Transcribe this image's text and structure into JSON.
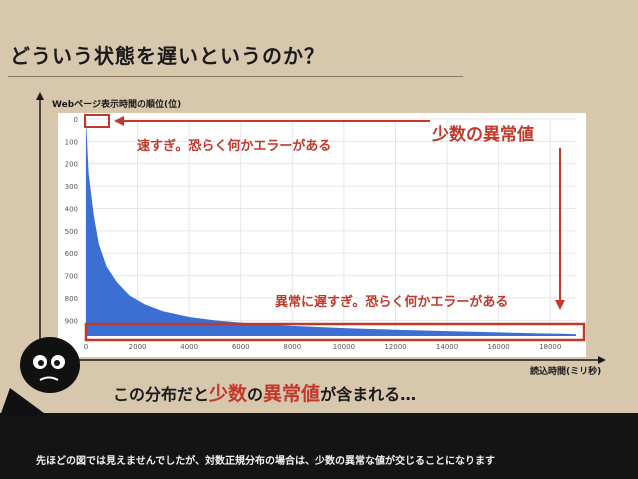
{
  "title": "どういう状態を遅いというのか？",
  "ylabel": "Webページ表示時間の順位(位)",
  "xlabel": "読込時間(ミリ秒)",
  "annotations": {
    "fast": "速すぎ。恐らく何かエラーがある",
    "slow": "異常に遅すぎ。恐らく何かエラーがある",
    "outlier": "少数の異常値"
  },
  "caption": {
    "pre": "この分布だと",
    "red1": "少数",
    "mid": "の",
    "red2": "異常値",
    "post": "が含まれる…"
  },
  "footer": "先ほどの図では見えませんでしたが、対数正規分布の場合は、少数の異常な値が交じることになります",
  "colors": {
    "accent": "#c0392b",
    "series": "#3b6fd4",
    "background": "#d7c7ad"
  },
  "chart_data": {
    "type": "area",
    "xlim": [
      0,
      19000
    ],
    "ylim": [
      0,
      970
    ],
    "y_inverted": true,
    "x_ticks": [
      0,
      2000,
      4000,
      6000,
      8000,
      10000,
      12000,
      14000,
      16000,
      18000
    ],
    "y_ticks": [
      0,
      100,
      200,
      300,
      400,
      500,
      600,
      700,
      800,
      900
    ],
    "grid": true,
    "x": [
      0,
      100,
      300,
      500,
      800,
      1200,
      1700,
      2300,
      3000,
      4000,
      5000,
      6000,
      8000,
      10000,
      12000,
      14000,
      16000,
      17500,
      18500,
      19000
    ],
    "y": [
      0,
      240,
      430,
      560,
      660,
      730,
      790,
      830,
      860,
      885,
      900,
      910,
      925,
      935,
      942,
      948,
      954,
      958,
      960,
      962
    ]
  }
}
